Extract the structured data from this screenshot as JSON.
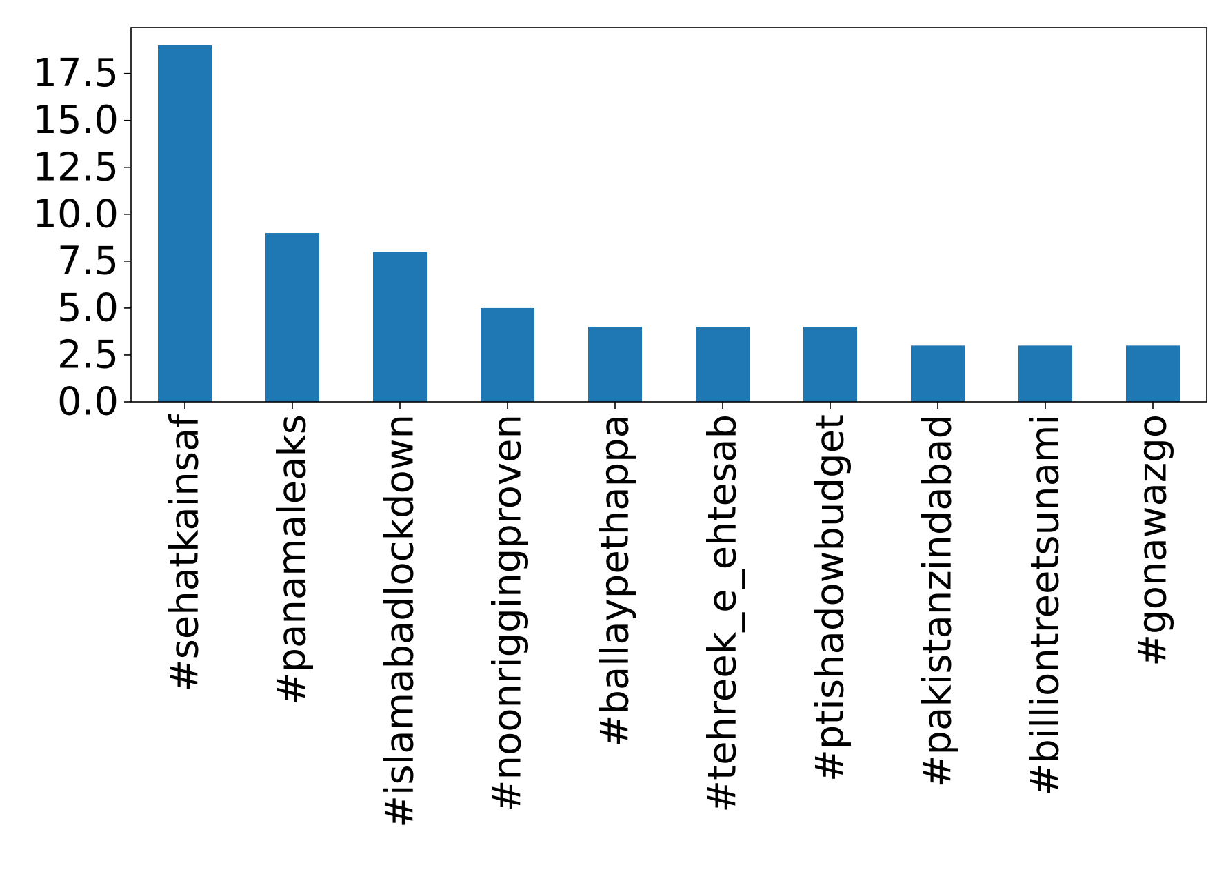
{
  "chart_data": {
    "type": "bar",
    "categories": [
      "#sehatkainsaf",
      "#panamaleaks",
      "#islamabadlockdown",
      "#noonriggingproven",
      "#ballaypethappa",
      "#tehreek_e_ehtesab",
      "#ptishadowbudget",
      "#pakistanzindabad",
      "#billiontreetsunami",
      "#gonawazgo"
    ],
    "values": [
      19,
      9,
      8,
      5,
      4,
      4,
      4,
      3,
      3,
      3
    ],
    "ylim": [
      0,
      19.95
    ],
    "yticks": [
      0.0,
      2.5,
      5.0,
      7.5,
      10.0,
      12.5,
      15.0,
      17.5
    ],
    "ytick_labels": [
      "0.0",
      "2.5",
      "5.0",
      "7.5",
      "10.0",
      "12.5",
      "15.0",
      "17.5"
    ],
    "title": "",
    "xlabel": "",
    "ylabel": "",
    "grid": false,
    "legend": "none",
    "bar_color": "#1f77b4",
    "x_tick_rotation": "vertical"
  }
}
